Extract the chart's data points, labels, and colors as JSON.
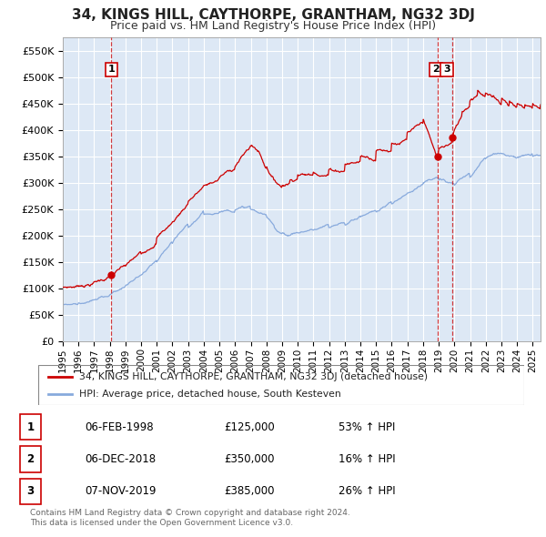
{
  "title": "34, KINGS HILL, CAYTHORPE, GRANTHAM, NG32 3DJ",
  "subtitle": "Price paid vs. HM Land Registry's House Price Index (HPI)",
  "xlim_start": 1995.0,
  "xlim_end": 2025.5,
  "ylim_min": 0,
  "ylim_max": 575000,
  "yticks": [
    0,
    50000,
    100000,
    150000,
    200000,
    250000,
    300000,
    350000,
    400000,
    450000,
    500000,
    550000
  ],
  "ytick_labels": [
    "£0",
    "£50K",
    "£100K",
    "£150K",
    "£200K",
    "£250K",
    "£300K",
    "£350K",
    "£400K",
    "£450K",
    "£500K",
    "£550K"
  ],
  "sale_dates": [
    1998.09,
    2018.92,
    2019.85
  ],
  "sale_prices": [
    125000,
    350000,
    385000
  ],
  "sale_labels": [
    "1",
    "2",
    "3"
  ],
  "red_line_color": "#cc0000",
  "blue_line_color": "#88aadd",
  "background_color": "#dde8f5",
  "grid_color": "#ffffff",
  "legend_label_red": "34, KINGS HILL, CAYTHORPE, GRANTHAM, NG32 3DJ (detached house)",
  "legend_label_blue": "HPI: Average price, detached house, South Kesteven",
  "table_rows": [
    [
      "1",
      "06-FEB-1998",
      "£125,000",
      "53% ↑ HPI"
    ],
    [
      "2",
      "06-DEC-2018",
      "£350,000",
      "16% ↑ HPI"
    ],
    [
      "3",
      "07-NOV-2019",
      "£385,000",
      "26% ↑ HPI"
    ]
  ],
  "footer": "Contains HM Land Registry data © Crown copyright and database right 2024.\nThis data is licensed under the Open Government Licence v3.0.",
  "red_base_x": [
    1995.0,
    1996.0,
    1997.0,
    1998.09,
    1999.0,
    2000.0,
    2001.0,
    2002.0,
    2003.0,
    2004.0,
    2005.0,
    2006.0,
    2007.0,
    2007.5,
    2008.0,
    2008.5,
    2009.0,
    2009.5,
    2010.0,
    2011.0,
    2012.0,
    2013.0,
    2014.0,
    2015.0,
    2016.0,
    2017.0,
    2018.0,
    2018.92,
    2019.0,
    2019.85,
    2020.0,
    2020.5,
    2021.0,
    2021.5,
    2022.0,
    2022.5,
    2023.0,
    2023.5,
    2024.0,
    2024.5,
    2025.0,
    2025.5
  ],
  "red_base_y": [
    102000,
    105000,
    112000,
    125000,
    142000,
    165000,
    195000,
    225000,
    265000,
    295000,
    310000,
    330000,
    370000,
    360000,
    330000,
    305000,
    295000,
    305000,
    315000,
    320000,
    325000,
    335000,
    350000,
    360000,
    375000,
    395000,
    420000,
    350000,
    365000,
    385000,
    400000,
    435000,
    455000,
    475000,
    470000,
    465000,
    460000,
    455000,
    450000,
    448000,
    450000,
    448000
  ],
  "blue_base_x": [
    1995.0,
    1996.0,
    1997.0,
    1998.0,
    1999.0,
    2000.0,
    2001.0,
    2002.0,
    2003.0,
    2004.0,
    2005.0,
    2006.0,
    2007.0,
    2008.0,
    2008.5,
    2009.0,
    2009.5,
    2010.0,
    2011.0,
    2012.0,
    2013.0,
    2014.0,
    2015.0,
    2016.0,
    2017.0,
    2018.0,
    2019.0,
    2020.0,
    2021.0,
    2022.0,
    2022.5,
    2023.0,
    2023.5,
    2024.0,
    2025.0,
    2025.5
  ],
  "blue_base_y": [
    70000,
    72000,
    78000,
    88000,
    105000,
    125000,
    150000,
    185000,
    215000,
    240000,
    245000,
    248000,
    250000,
    235000,
    215000,
    205000,
    200000,
    205000,
    210000,
    215000,
    220000,
    235000,
    245000,
    260000,
    280000,
    300000,
    305000,
    295000,
    310000,
    345000,
    355000,
    355000,
    350000,
    348000,
    350000,
    352000
  ]
}
